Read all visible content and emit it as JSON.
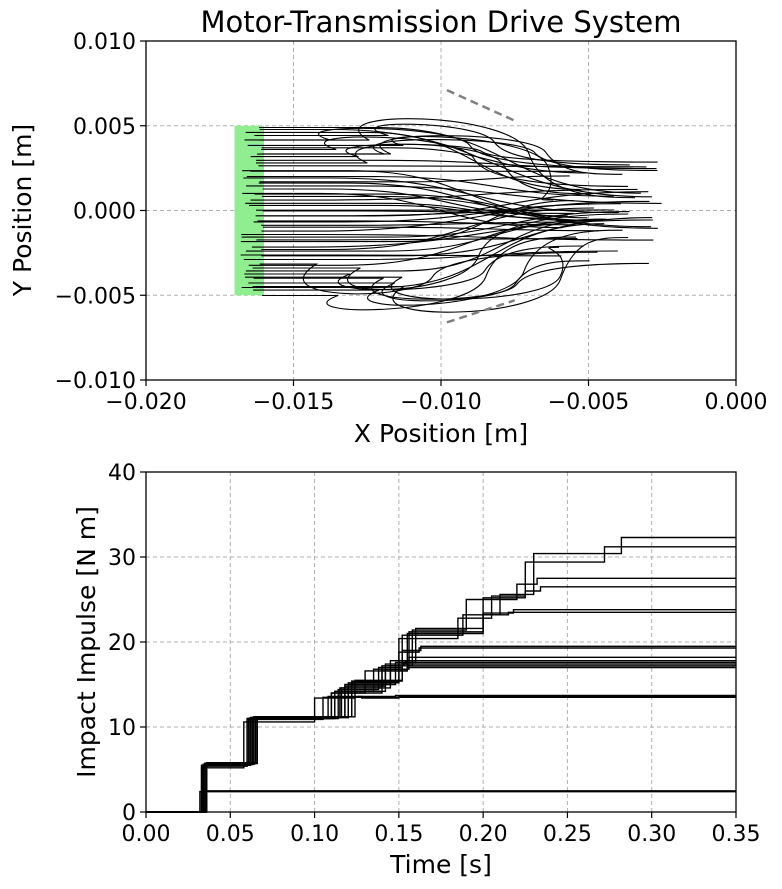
{
  "colors": {
    "trajectory": "#000000",
    "start_region": "#90ee90",
    "boundary": "#808080",
    "grid": "#b0b0b0"
  },
  "chart_data": [
    {
      "type": "line",
      "title": "Motor-Transmission Drive System",
      "xlabel": "X Position [m]",
      "ylabel": "Y Position [m]",
      "xlim": [
        -0.02,
        0.0
      ],
      "ylim": [
        -0.01,
        0.01
      ],
      "xticks": [
        -0.02,
        -0.015,
        -0.01,
        -0.005,
        0.0
      ],
      "yticks": [
        -0.01,
        -0.005,
        0.0,
        0.005,
        0.01
      ],
      "xtick_labels": [
        "−0.020",
        "−0.015",
        "−0.010",
        "−0.005",
        "0.000"
      ],
      "ytick_labels": [
        "−0.010",
        "−0.005",
        "0.000",
        "0.005",
        "0.010"
      ],
      "grid": true,
      "start_region": {
        "x": [
          -0.017,
          -0.016
        ],
        "y": [
          -0.005,
          0.005
        ]
      },
      "boundary_segments": [
        [
          [
            -0.0098,
            0.0071
          ],
          [
            -0.0075,
            0.0053
          ]
        ],
        [
          [
            -0.0098,
            -0.0066
          ],
          [
            -0.0075,
            -0.0053
          ]
        ]
      ],
      "trajectory_count": 60,
      "start_y_range": [
        -0.005,
        0.005
      ],
      "end_x_range": [
        -0.0062,
        -0.0025
      ]
    },
    {
      "type": "line",
      "title": "",
      "xlabel": "Time [s]",
      "ylabel": "Impact Impulse [N m]",
      "xlim": [
        0.0,
        0.35
      ],
      "ylim": [
        0,
        40
      ],
      "xticks": [
        0.0,
        0.05,
        0.1,
        0.15,
        0.2,
        0.25,
        0.3,
        0.35
      ],
      "yticks": [
        0,
        10,
        20,
        30,
        40
      ],
      "xtick_labels": [
        "0.00",
        "0.05",
        "0.10",
        "0.15",
        "0.20",
        "0.25",
        "0.30",
        "0.35"
      ],
      "ytick_labels": [
        "0",
        "10",
        "20",
        "30",
        "40"
      ],
      "grid": true,
      "step_series": [
        {
          "t": [
            0.031,
            0.032
          ],
          "y": [
            0,
            2.4
          ]
        },
        {
          "t": [
            0.031,
            0.035
          ],
          "y": [
            0,
            2.4
          ]
        },
        {
          "t": [
            0.032,
            0.034
          ],
          "y": [
            0,
            2.5
          ]
        },
        {
          "t": [
            0.033,
            0.058,
            0.1,
            0.124,
            0.15
          ],
          "y": [
            5.2,
            10.6,
            13.4,
            13.5,
            13.6
          ]
        },
        {
          "t": [
            0.034,
            0.06,
            0.105,
            0.126,
            0.148
          ],
          "y": [
            5.4,
            10.9,
            13.5,
            13.6,
            13.7
          ]
        },
        {
          "t": [
            0.033,
            0.062,
            0.108,
            0.128,
            0.15
          ],
          "y": [
            5.5,
            11.0,
            13.6,
            13.4,
            13.5
          ]
        },
        {
          "t": [
            0.034,
            0.064,
            0.11,
            0.13,
            0.155
          ],
          "y": [
            5.6,
            11.1,
            14.0,
            16.6,
            17.0
          ]
        },
        {
          "t": [
            0.035,
            0.066,
            0.112,
            0.135,
            0.155
          ],
          "y": [
            5.7,
            11.2,
            14.2,
            16.8,
            17.2
          ]
        },
        {
          "t": [
            0.033,
            0.061,
            0.114,
            0.138,
            0.152
          ],
          "y": [
            5.5,
            11.0,
            14.4,
            17.0,
            17.4
          ]
        },
        {
          "t": [
            0.034,
            0.063,
            0.116,
            0.14,
            0.153
          ],
          "y": [
            5.6,
            11.1,
            14.6,
            17.2,
            17.6
          ]
        },
        {
          "t": [
            0.035,
            0.065,
            0.118,
            0.142,
            0.154
          ],
          "y": [
            5.7,
            11.2,
            14.8,
            17.4,
            17.8
          ]
        },
        {
          "t": [
            0.034,
            0.062,
            0.12,
            0.145,
            0.156
          ],
          "y": [
            5.6,
            11.1,
            15.0,
            17.8,
            18.2
          ]
        },
        {
          "t": [
            0.035,
            0.064,
            0.122,
            0.15,
            0.162
          ],
          "y": [
            5.7,
            11.2,
            15.3,
            18.8,
            19.3
          ]
        },
        {
          "t": [
            0.036,
            0.066,
            0.124,
            0.152,
            0.163
          ],
          "y": [
            5.8,
            11.2,
            15.5,
            19.0,
            19.5
          ]
        },
        {
          "t": [
            0.033,
            0.06,
            0.11,
            0.14,
            0.155,
            0.2,
            0.215
          ],
          "y": [
            5.4,
            11.0,
            14.0,
            16.6,
            21.0,
            23.2,
            23.5
          ]
        },
        {
          "t": [
            0.034,
            0.061,
            0.112,
            0.142,
            0.156,
            0.2,
            0.218
          ],
          "y": [
            5.5,
            11.0,
            14.2,
            16.8,
            21.2,
            23.4,
            23.8
          ]
        },
        {
          "t": [
            0.035,
            0.063,
            0.115,
            0.145,
            0.158,
            0.19,
            0.22,
            0.232
          ],
          "y": [
            5.6,
            11.1,
            14.6,
            17.2,
            21.4,
            25.0,
            26.8,
            27.5
          ]
        },
        {
          "t": [
            0.036,
            0.065,
            0.118,
            0.148,
            0.16,
            0.2,
            0.225,
            0.234
          ],
          "y": [
            5.7,
            11.2,
            15.0,
            17.6,
            21.6,
            25.2,
            26.0,
            26.5
          ]
        },
        {
          "t": [
            0.034,
            0.062,
            0.12,
            0.15,
            0.185,
            0.205,
            0.225,
            0.272
          ],
          "y": [
            5.6,
            11.1,
            15.2,
            20.4,
            22.8,
            25.4,
            29.4,
            31.2
          ]
        },
        {
          "t": [
            0.035,
            0.064,
            0.122,
            0.152,
            0.188,
            0.21,
            0.23,
            0.282
          ],
          "y": [
            5.7,
            11.2,
            15.4,
            20.8,
            23.2,
            25.6,
            30.4,
            32.3
          ]
        }
      ]
    }
  ]
}
